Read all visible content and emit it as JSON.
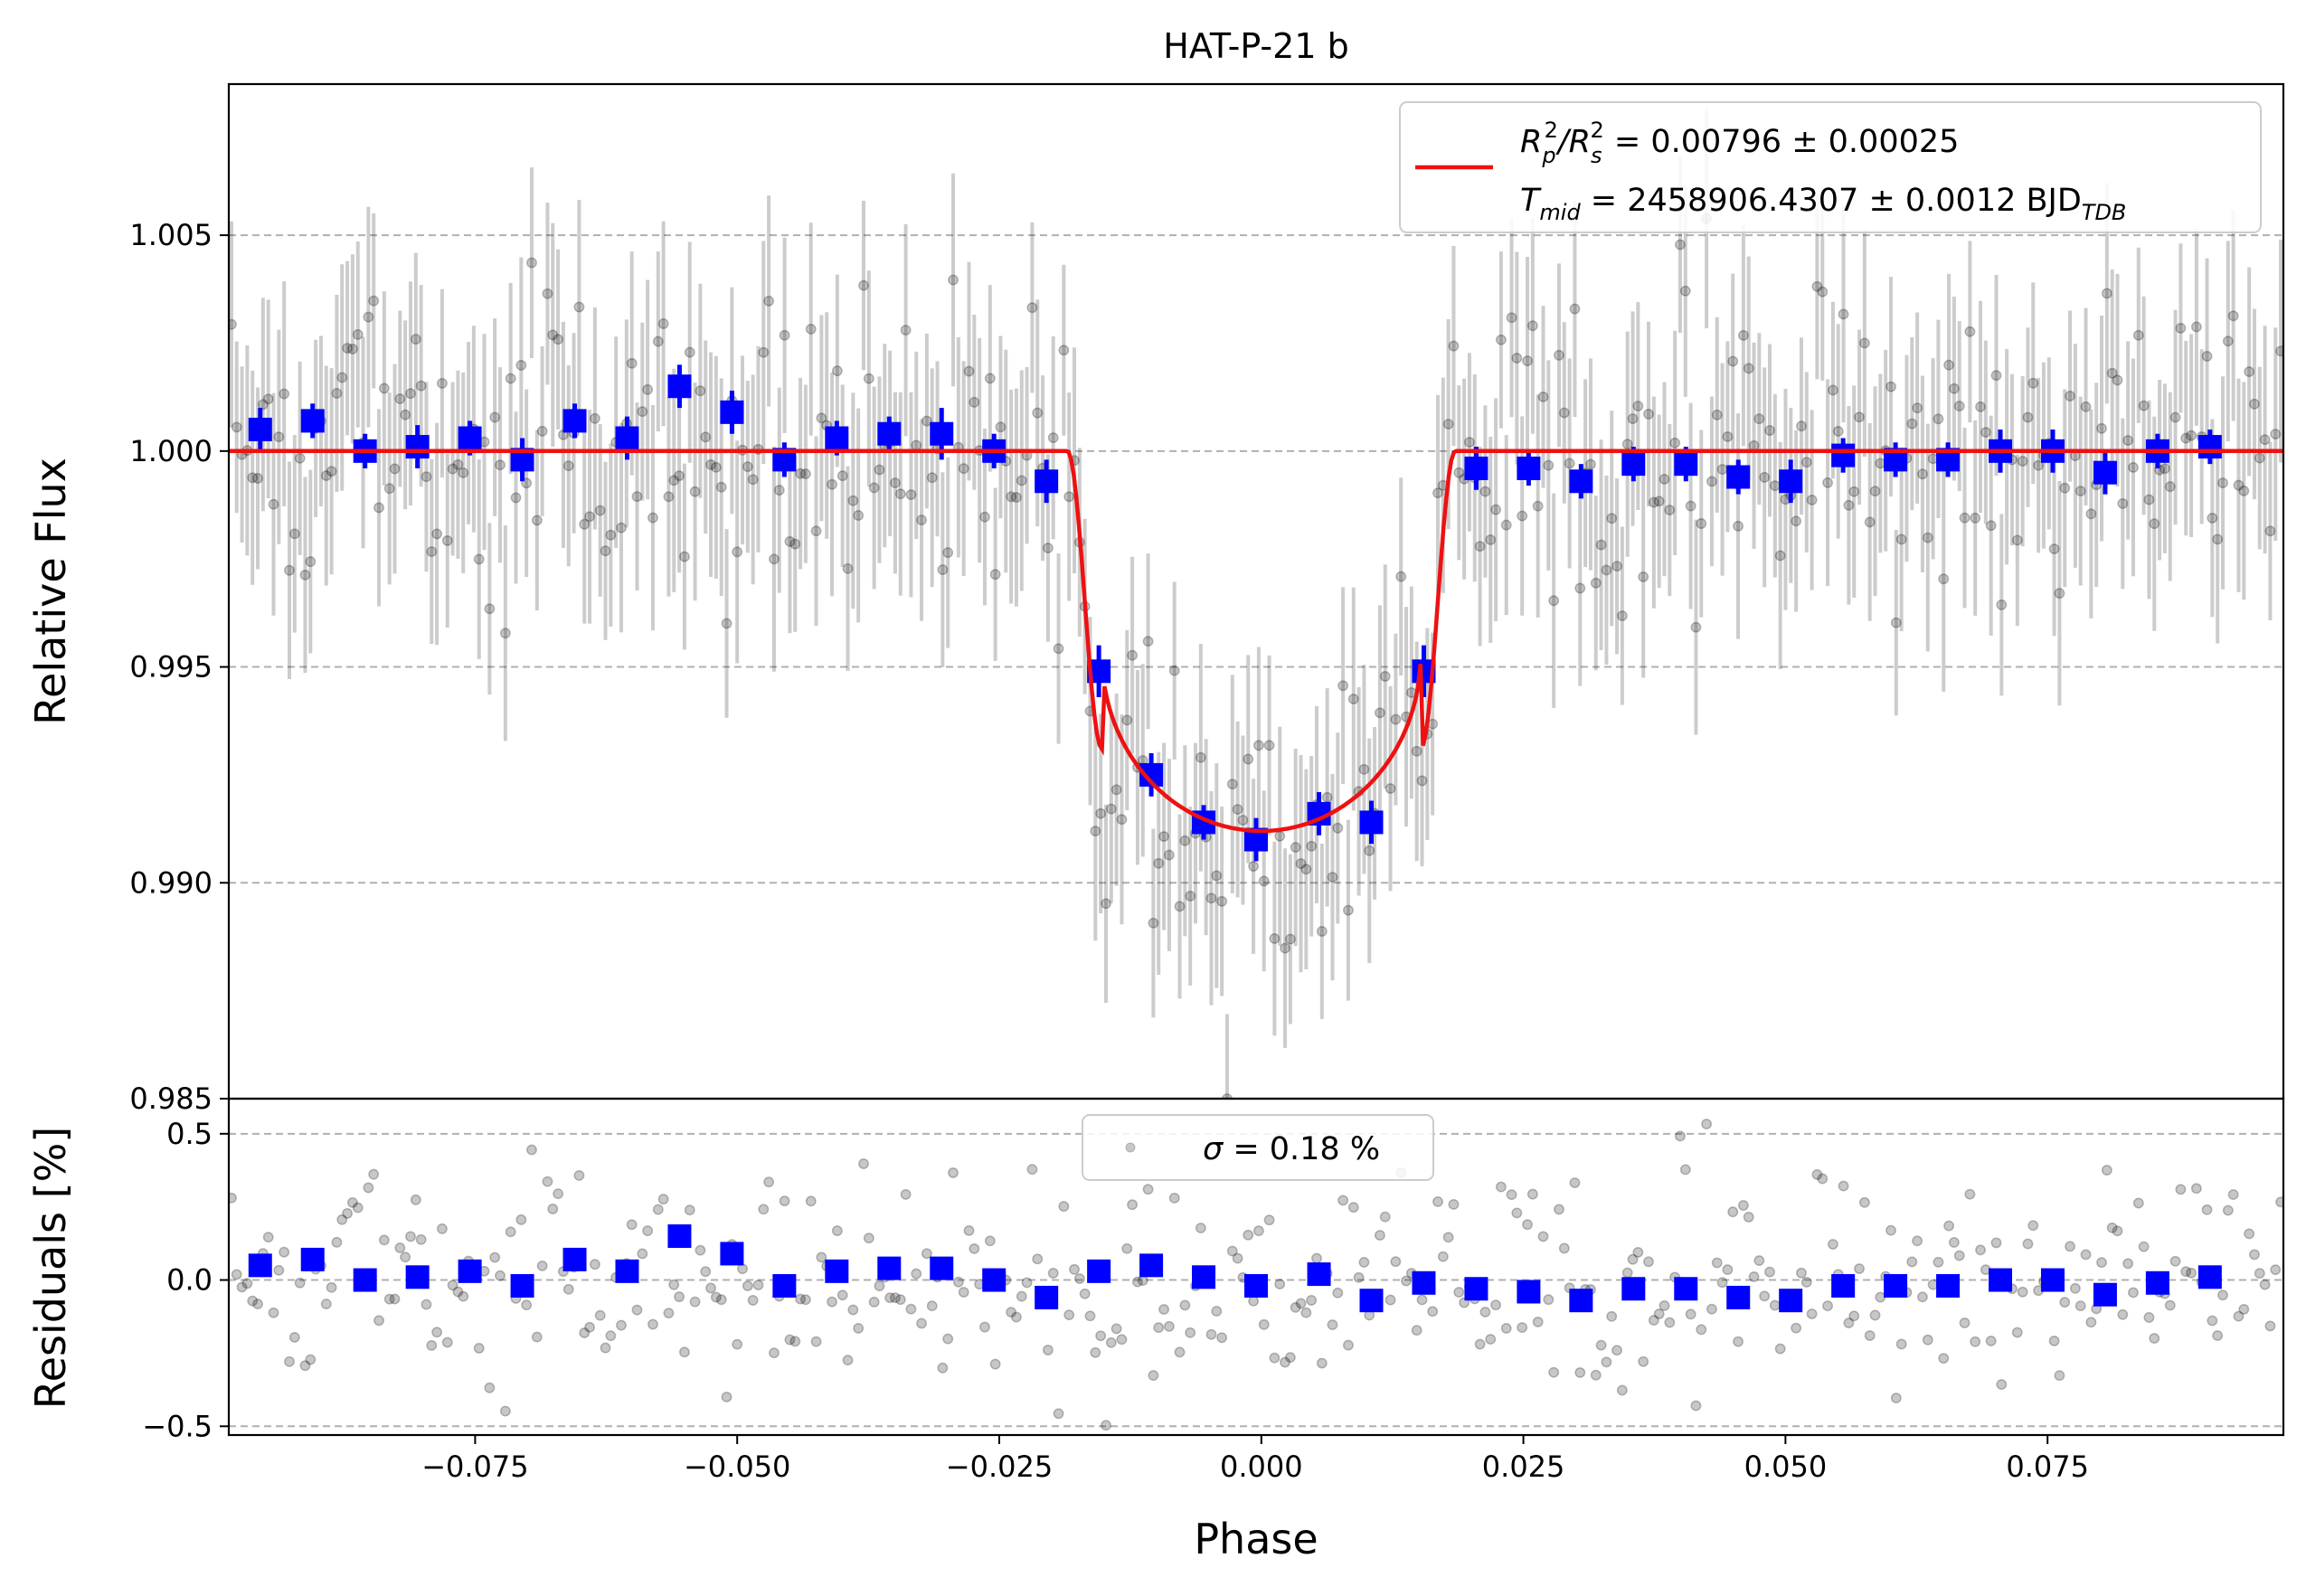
{
  "chart_data": [
    {
      "panel": "flux",
      "type": "scatter",
      "title": "HAT-P-21 b",
      "xlabel": "",
      "ylabel": "Relative Flux",
      "xlim": [
        -0.0985,
        0.0975
      ],
      "ylim": [
        0.985,
        1.0085
      ],
      "y_ticks": [
        0.985,
        0.99,
        0.995,
        1.0,
        1.005
      ],
      "y_tick_labels": [
        "0.985",
        "0.990",
        "0.995",
        "1.000",
        "1.005"
      ],
      "grid": "horizontal dashed",
      "legend_position": "top-right",
      "legend": {
        "line1": {
          "lhs_main": "R",
          "lhs_sub1": "p",
          "lhs_sup1": "2",
          "lhs_sep": "/R",
          "lhs_sub2": "s",
          "lhs_sup2": "2",
          "rhs": " = 0.00796 ± 0.00025"
        },
        "line2": {
          "lhs_main": "T",
          "lhs_sub": "mid",
          "rhs": " = 2458906.4307 ± 0.0012 BJD",
          "rhs_sub": "TDB"
        }
      },
      "model": {
        "name": "transit model",
        "color": "#ee1111",
        "baseline": 1.0,
        "depth": 0.0088,
        "t14_half": 0.0185,
        "t23_half": 0.0152
      },
      "binned": {
        "color": "#0000ff",
        "x": [
          -0.0955,
          -0.0905,
          -0.0855,
          -0.0805,
          -0.0755,
          -0.0705,
          -0.0655,
          -0.0605,
          -0.0555,
          -0.0505,
          -0.0455,
          -0.0405,
          -0.0355,
          -0.0305,
          -0.0255,
          -0.0205,
          -0.0155,
          -0.0105,
          -0.0055,
          -0.0005,
          0.0055,
          0.0105,
          0.0155,
          0.0205,
          0.0255,
          0.0305,
          0.0355,
          0.0405,
          0.0455,
          0.0505,
          0.0555,
          0.0605,
          0.0655,
          0.0705,
          0.0755,
          0.0805,
          0.0855,
          0.0905
        ],
        "y": [
          1.0005,
          1.0007,
          1.0,
          1.0001,
          1.0003,
          0.9998,
          1.0007,
          1.0003,
          1.0015,
          1.0009,
          0.9998,
          1.0003,
          1.0004,
          1.0004,
          1.0,
          0.9993,
          0.9949,
          0.9925,
          0.9914,
          0.991,
          0.9916,
          0.9914,
          0.9949,
          0.9996,
          0.9996,
          0.9993,
          0.9997,
          0.9997,
          0.9994,
          0.9993,
          0.9999,
          0.9998,
          0.9998,
          1.0,
          1.0,
          0.9995,
          1.0,
          1.0001
        ],
        "yerr": [
          0.0005,
          0.0004,
          0.0004,
          0.0005,
          0.0004,
          0.0005,
          0.0004,
          0.0005,
          0.0005,
          0.0005,
          0.0004,
          0.0004,
          0.0004,
          0.0006,
          0.0004,
          0.0005,
          0.0006,
          0.0005,
          0.0004,
          0.0005,
          0.0005,
          0.0005,
          0.0006,
          0.0005,
          0.0004,
          0.0004,
          0.0004,
          0.0004,
          0.0004,
          0.0005,
          0.0004,
          0.0004,
          0.0004,
          0.0005,
          0.0005,
          0.0005,
          0.0004,
          0.0004
        ]
      },
      "raw": {
        "color": "#000000",
        "n_points": 390,
        "noise_sigma": 0.0018,
        "errorbar_sigma": 0.0023
      }
    },
    {
      "panel": "residuals",
      "type": "scatter",
      "xlabel": "Phase",
      "ylabel": "Residuals [%]",
      "xlim": [
        -0.0985,
        0.0975
      ],
      "ylim": [
        -0.53,
        0.62
      ],
      "x_ticks": [
        -0.075,
        -0.05,
        -0.025,
        0.0,
        0.025,
        0.05,
        0.075
      ],
      "x_tick_labels": [
        "−0.075",
        "−0.050",
        "−0.025",
        "0.000",
        "0.025",
        "0.050",
        "0.075"
      ],
      "y_ticks": [
        -0.5,
        0.0,
        0.5
      ],
      "y_tick_labels": [
        "−0.5",
        "0.0",
        "0.5"
      ],
      "grid": "horizontal dashed",
      "legend_position": "top-center",
      "legend": {
        "symbol": "σ",
        "text": " = 0.18 %"
      },
      "binned": {
        "color": "#0000ff",
        "x": [
          -0.0955,
          -0.0905,
          -0.0855,
          -0.0805,
          -0.0755,
          -0.0705,
          -0.0655,
          -0.0605,
          -0.0555,
          -0.0505,
          -0.0455,
          -0.0405,
          -0.0355,
          -0.0305,
          -0.0255,
          -0.0205,
          -0.0155,
          -0.0105,
          -0.0055,
          -0.0005,
          0.0055,
          0.0105,
          0.0155,
          0.0205,
          0.0255,
          0.0305,
          0.0355,
          0.0405,
          0.0455,
          0.0505,
          0.0555,
          0.0605,
          0.0655,
          0.0705,
          0.0755,
          0.0805,
          0.0855,
          0.0905
        ],
        "y": [
          0.05,
          0.07,
          0.0,
          0.01,
          0.03,
          -0.02,
          0.07,
          0.03,
          0.15,
          0.09,
          -0.02,
          0.03,
          0.04,
          0.04,
          0.0,
          -0.06,
          0.03,
          0.05,
          0.01,
          -0.02,
          0.02,
          -0.07,
          -0.01,
          -0.03,
          -0.04,
          -0.07,
          -0.03,
          -0.03,
          -0.06,
          -0.07,
          -0.02,
          -0.02,
          -0.02,
          0.0,
          0.0,
          -0.05,
          -0.01,
          0.01
        ]
      },
      "raw": {
        "color": "#000000",
        "n_points": 390,
        "noise_sigma": 0.18
      }
    }
  ]
}
